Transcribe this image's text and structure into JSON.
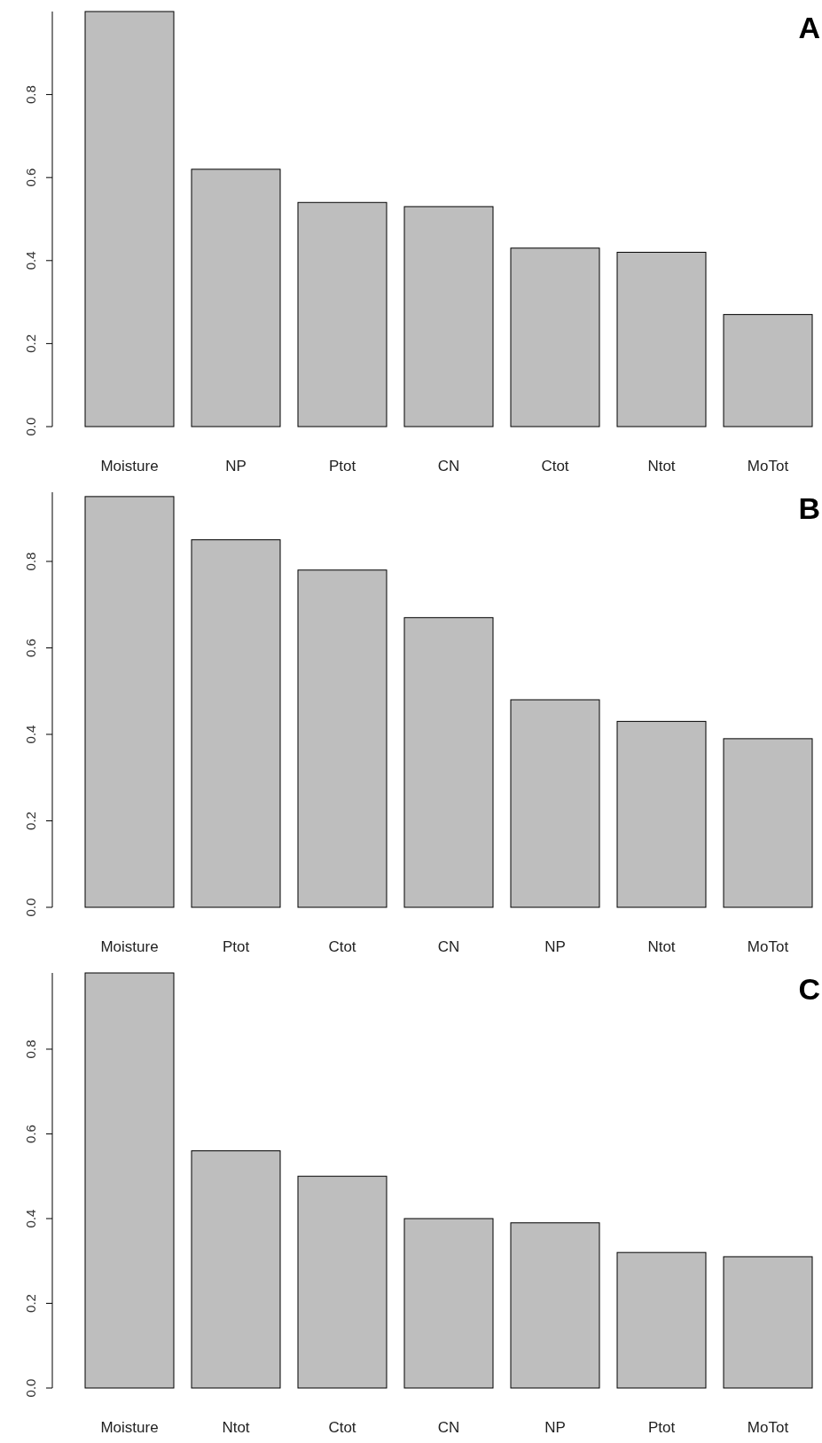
{
  "chart_data": [
    {
      "type": "bar",
      "title": "A",
      "categories": [
        "Moisture",
        "NP",
        "Ptot",
        "CN",
        "Ctot",
        "Ntot",
        "MoTot"
      ],
      "values": [
        1.0,
        0.62,
        0.54,
        0.53,
        0.43,
        0.42,
        0.27
      ],
      "color": "#bebebe",
      "ylim": [
        0,
        1.0
      ],
      "yticks": [
        {
          "value": 0,
          "label": "0.0"
        },
        {
          "value": 0.2,
          "label": "0.2"
        },
        {
          "value": 0.4,
          "label": "0.4"
        },
        {
          "value": 0.6,
          "label": "0.6"
        },
        {
          "value": 0.8,
          "label": "0.8"
        }
      ]
    },
    {
      "type": "bar",
      "title": "B",
      "categories": [
        "Moisture",
        "Ptot",
        "Ctot",
        "CN",
        "NP",
        "Ntot",
        "MoTot"
      ],
      "values": [
        0.95,
        0.85,
        0.78,
        0.67,
        0.48,
        0.43,
        0.39
      ],
      "color": "#bebebe",
      "ylim": [
        0,
        0.96
      ],
      "yticks": [
        {
          "value": 0,
          "label": "0.0"
        },
        {
          "value": 0.2,
          "label": "0.2"
        },
        {
          "value": 0.4,
          "label": "0.4"
        },
        {
          "value": 0.6,
          "label": "0.6"
        },
        {
          "value": 0.8,
          "label": "0.8"
        }
      ]
    },
    {
      "type": "bar",
      "title": "C",
      "categories": [
        "Moisture",
        "Ntot",
        "Ctot",
        "CN",
        "NP",
        "Ptot",
        "MoTot"
      ],
      "values": [
        0.98,
        0.56,
        0.5,
        0.4,
        0.39,
        0.32,
        0.31
      ],
      "color": "#bebebe",
      "ylim": [
        0,
        0.98
      ],
      "yticks": [
        {
          "value": 0,
          "label": "0.0"
        },
        {
          "value": 0.2,
          "label": "0.2"
        },
        {
          "value": 0.4,
          "label": "0.4"
        },
        {
          "value": 0.6,
          "label": "0.6"
        },
        {
          "value": 0.8,
          "label": "0.8"
        }
      ]
    }
  ]
}
